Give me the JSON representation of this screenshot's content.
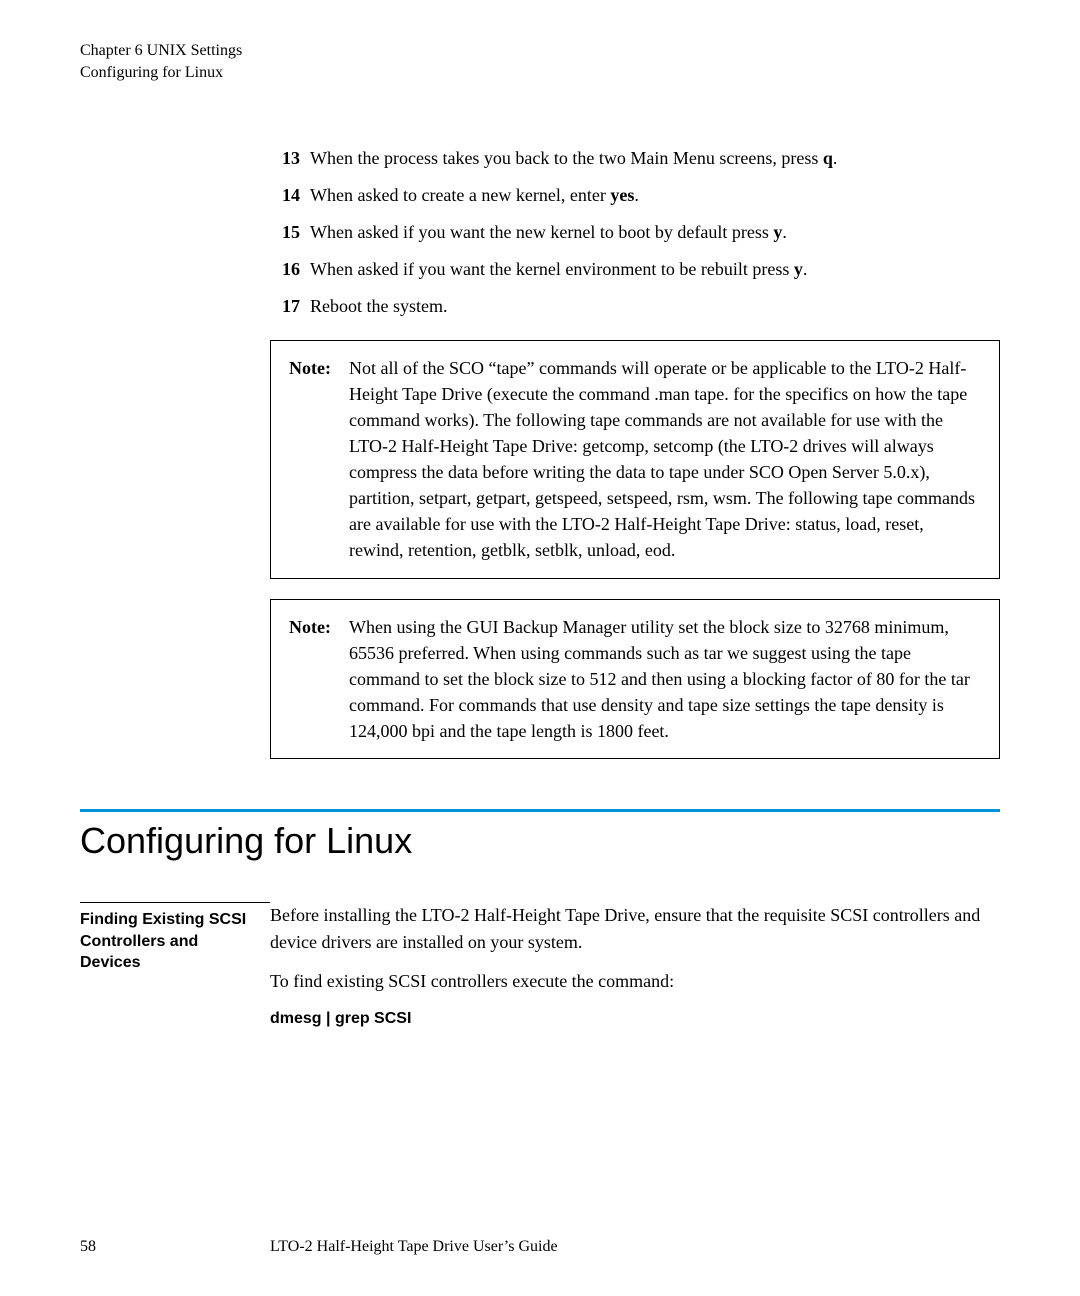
{
  "header": {
    "chapter": "Chapter 6  UNIX Settings",
    "section": "Configuring for Linux"
  },
  "steps": [
    {
      "num": "13",
      "text_before": "When the process takes you back to the two Main Menu screens, press ",
      "bold": "q",
      "text_after": "."
    },
    {
      "num": "14",
      "text_before": "When asked to create a new kernel, enter ",
      "bold": "yes",
      "text_after": "."
    },
    {
      "num": "15",
      "text_before": "When asked if you want the new kernel to boot by default press ",
      "bold": "y",
      "text_after": "."
    },
    {
      "num": "16",
      "text_before": "When asked if you want the kernel environment to be rebuilt press ",
      "bold": "y",
      "text_after": "."
    },
    {
      "num": "17",
      "text_before": "Reboot the system.",
      "bold": "",
      "text_after": ""
    }
  ],
  "notes": [
    {
      "label": "Note:",
      "text": "Not all of the SCO “tape” commands will operate or be applicable to the LTO-2 Half-Height Tape Drive (execute the command .man tape. for the specifics on how the tape command works). The following tape commands are not available for use with the LTO-2 Half-Height Tape Drive: getcomp, setcomp (the LTO-2 drives will always compress the data before writing the data to tape under SCO Open Server 5.0.x), partition, setpart, getpart, getspeed, setspeed, rsm, wsm. The following tape commands are available for use with the LTO-2 Half-Height Tape Drive: status, load, reset, rewind, retention, getblk, setblk, unload, eod."
    },
    {
      "label": "Note:",
      "text": "When using the GUI Backup Manager utility set the block size to 32768 minimum, 65536 preferred. When using commands such as tar we suggest using the tape command to set the block size to 512 and then using a blocking factor of 80 for the tar command. For commands that use density and tape size settings the tape density is 124,000 bpi and the tape length is 1800 feet."
    }
  ],
  "section": {
    "title": "Configuring for Linux",
    "rule_color": "#0093d8"
  },
  "subsection": {
    "heading": "Finding Existing SCSI Controllers and Devices",
    "p1": "Before installing the LTO-2 Half-Height Tape Drive, ensure that the requisite SCSI controllers and device drivers are installed on your system.",
    "p2": "To find existing SCSI controllers execute the command:",
    "cmd": "dmesg  |  grep  SCSI"
  },
  "footer": {
    "page": "58",
    "doc": "LTO-2 Half-Height Tape Drive User’s Guide"
  }
}
